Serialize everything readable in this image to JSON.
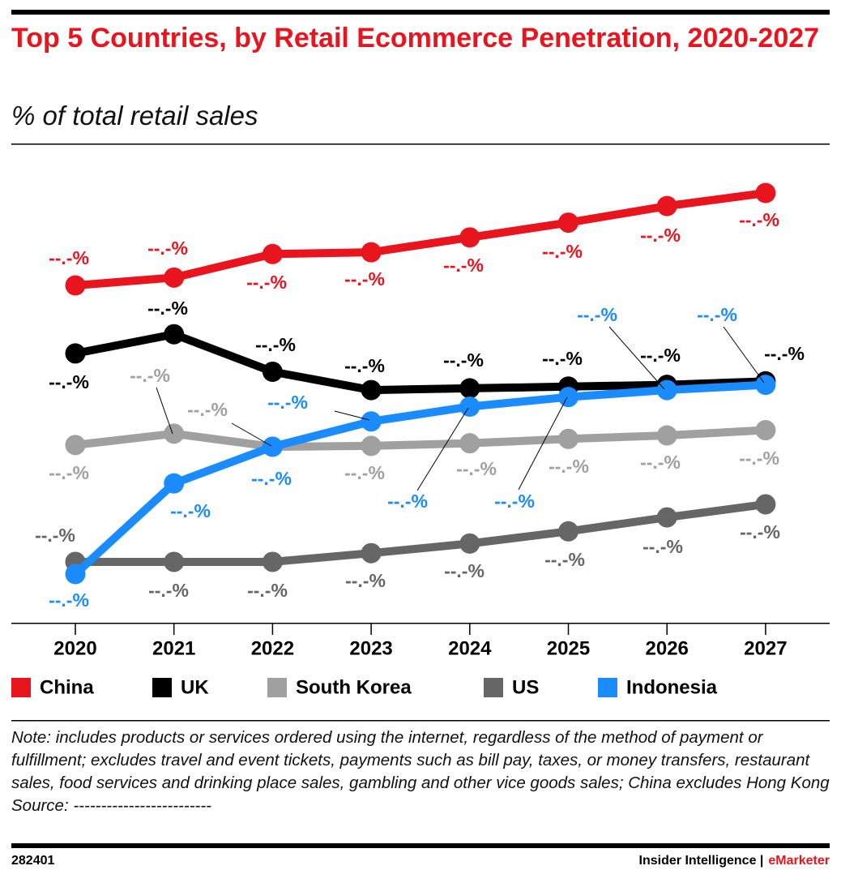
{
  "chart_data": {
    "type": "line",
    "title": "Top 5 Countries, by Retail Ecommerce Penetration, 2020-2027",
    "subtitle": "% of total retail sales",
    "categories": [
      "2020",
      "2021",
      "2022",
      "2023",
      "2024",
      "2025",
      "2026",
      "2027"
    ],
    "series": [
      {
        "name": "China",
        "color": "#e8141e",
        "values": [
          45.7,
          46.6,
          49.3,
          49.5,
          51.2,
          52.9,
          54.8,
          56.3
        ],
        "value_labels": [
          "--.-%",
          "--.-%",
          "--.-%",
          "--.-%",
          "--.-%",
          "--.-%",
          "--.-%",
          "--.-%"
        ]
      },
      {
        "name": "UK",
        "color": "#000000",
        "values": [
          37.9,
          40.1,
          35.8,
          33.7,
          33.9,
          34.1,
          34.3,
          34.7
        ],
        "value_labels": [
          "--.-%",
          "--.-%",
          "--.-%",
          "--.-%",
          "--.-%",
          "--.-%",
          "--.-%",
          "--.-%"
        ]
      },
      {
        "name": "South Korea",
        "color": "#a0a0a0",
        "values": [
          27.4,
          28.7,
          27.2,
          27.3,
          27.6,
          28.1,
          28.5,
          29.1
        ],
        "value_labels": [
          "--.-%",
          "--.-%",
          "--.-%",
          "--.-%",
          "--.-%",
          "--.-%",
          "--.-%",
          "--.-%"
        ]
      },
      {
        "name": "US",
        "color": "#666666",
        "values": [
          14.0,
          14.0,
          14.0,
          15.0,
          16.1,
          17.5,
          19.1,
          20.6
        ],
        "value_labels": [
          "--.-%",
          "--.-%",
          "--.-%",
          "--.-%",
          "--.-%",
          "--.-%",
          "--.-%",
          "--.-%"
        ]
      },
      {
        "name": "Indonesia",
        "color": "#1a8cff",
        "values": [
          12.6,
          23.0,
          27.2,
          30.1,
          31.8,
          32.9,
          33.7,
          34.3
        ],
        "value_labels": [
          "--.-%",
          "--.-%",
          "--.-%",
          "--.-%",
          "--.-%",
          "--.-%",
          "--.-%",
          "--.-%"
        ]
      }
    ],
    "note": "Note: includes products or services ordered using the internet, regardless of the method of payment or fulfillment; excludes travel and event tickets, payments such as bill pay, taxes, or money transfers, restaurant sales, food services and drinking place sales, gambling and other vice goods sales; China excludes Hong Kong",
    "source": "Source: -------------------------",
    "chart_id": "282401",
    "publisher": "Insider Intelligence |",
    "brand": "eMarketer"
  }
}
